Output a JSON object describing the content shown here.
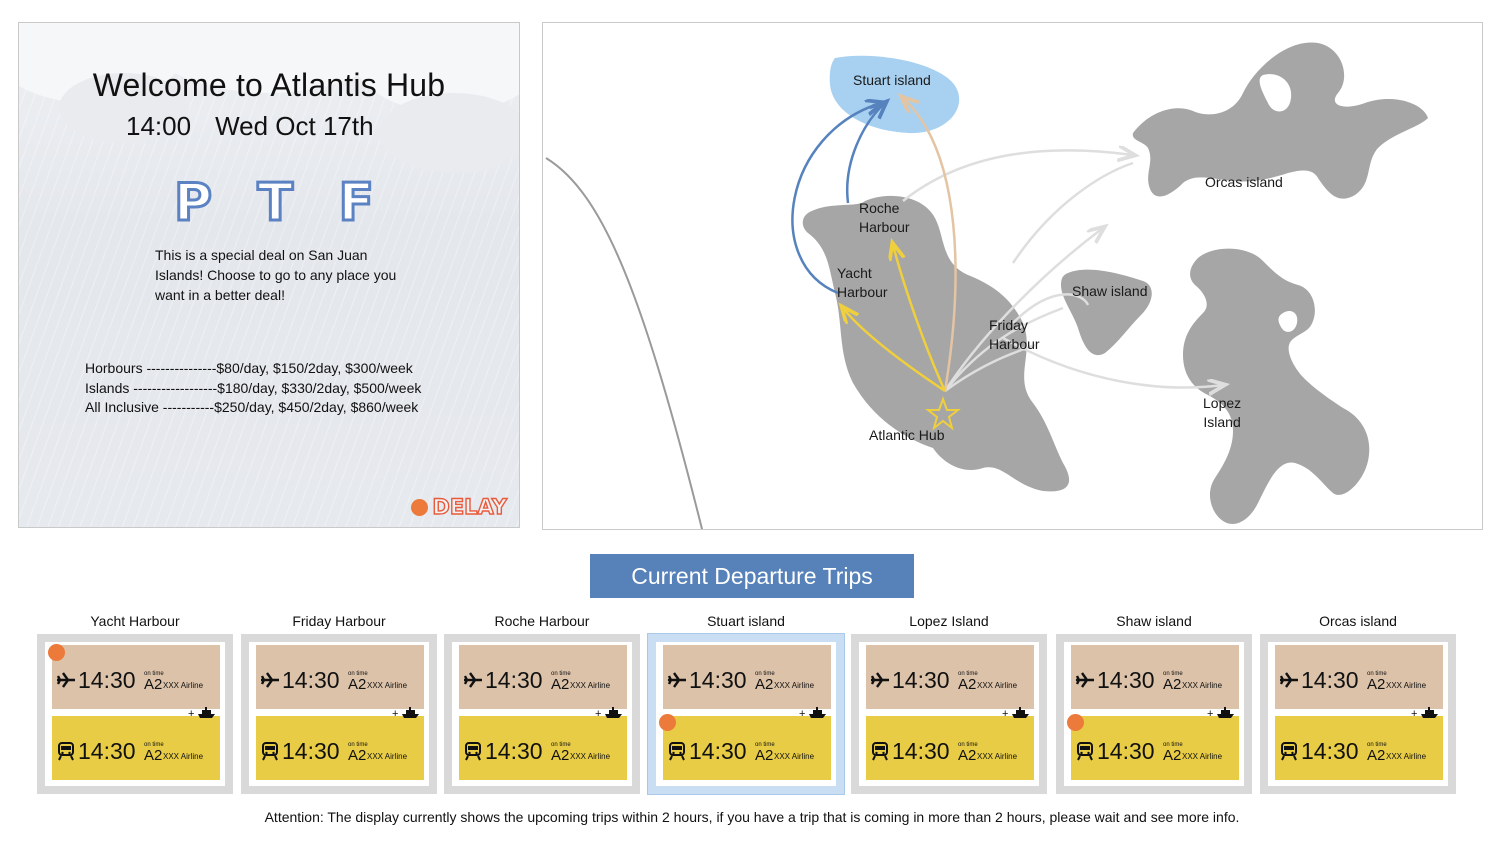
{
  "welcome": {
    "title": "Welcome to Atlantis Hub",
    "time": "14:00",
    "date": "Wed Oct 17th",
    "ptf": [
      "P",
      "T",
      "F"
    ],
    "deal_text": "This is a special deal on San Juan Islands! Choose to go to any place you want in a better deal!",
    "prices": [
      "Horbours ---------------$80/day, $150/2day, $300/week",
      "Islands ------------------$180/day, $330/2day, $500/week",
      "All Inclusive -----------$250/day, $450/2day, $860/week"
    ],
    "delay_label": "DELAY",
    "delay_color": "#ec7a3a"
  },
  "map": {
    "labels": {
      "stuart": "Stuart island",
      "orcas": "Orcas island",
      "roche": "Roche\nHarbour",
      "yacht": "Yacht\nHarbour",
      "shaw": "Shaw island",
      "friday": "Friday\nHarbour",
      "lopez": "Lopez\nIsland",
      "hub": "Atlantic Hub"
    },
    "colors": {
      "land": "#a6a6a6",
      "highlight": "#a8d1f1",
      "ferry_route": "#f0cf3d",
      "flight_route": "#5683bd",
      "tan_route": "#e3c4a3",
      "other_route": "#dedede"
    }
  },
  "departures": {
    "title": "Current Departure Trips",
    "stations": [
      {
        "name": "Yacht Harbour",
        "flight": {
          "time": "14:30",
          "status": "on time",
          "code": "A2",
          "airline": "XXX Airline"
        },
        "ferry": {
          "time": "14:30",
          "status": "on time",
          "code": "A2",
          "airline": "XXX Airline"
        },
        "delay_flight": true,
        "delay_ferry": false,
        "selected": false
      },
      {
        "name": "Friday Harbour",
        "flight": {
          "time": "14:30",
          "status": "on time",
          "code": "A2",
          "airline": "XXX Airline"
        },
        "ferry": {
          "time": "14:30",
          "status": "on time",
          "code": "A2",
          "airline": "XXX Airline"
        },
        "delay_flight": false,
        "delay_ferry": false,
        "selected": false
      },
      {
        "name": "Roche Harbour",
        "flight": {
          "time": "14:30",
          "status": "on time",
          "code": "A2",
          "airline": "XXX Airline"
        },
        "ferry": {
          "time": "14:30",
          "status": "on time",
          "code": "A2",
          "airline": "XXX Airline"
        },
        "delay_flight": false,
        "delay_ferry": false,
        "selected": false
      },
      {
        "name": "Stuart island",
        "flight": {
          "time": "14:30",
          "status": "on time",
          "code": "A2",
          "airline": "XXX Airline"
        },
        "ferry": {
          "time": "14:30",
          "status": "on time",
          "code": "A2",
          "airline": "XXX Airline"
        },
        "delay_flight": false,
        "delay_ferry": true,
        "selected": true
      },
      {
        "name": "Lopez Island",
        "flight": {
          "time": "14:30",
          "status": "on time",
          "code": "A2",
          "airline": "XXX Airline"
        },
        "ferry": {
          "time": "14:30",
          "status": "on time",
          "code": "A2",
          "airline": "XXX Airline"
        },
        "delay_flight": false,
        "delay_ferry": false,
        "selected": false
      },
      {
        "name": "Shaw island",
        "flight": {
          "time": "14:30",
          "status": "on time",
          "code": "A2",
          "airline": "XXX Airline"
        },
        "ferry": {
          "time": "14:30",
          "status": "on time",
          "code": "A2",
          "airline": "XXX Airline"
        },
        "delay_flight": false,
        "delay_ferry": true,
        "selected": false
      },
      {
        "name": "Orcas island",
        "flight": {
          "time": "14:30",
          "status": "on time",
          "code": "A2",
          "airline": "XXX Airline"
        },
        "ferry": {
          "time": "14:30",
          "status": "on time",
          "code": "A2",
          "airline": "XXX Airline"
        },
        "delay_flight": false,
        "delay_ferry": false,
        "selected": false
      }
    ],
    "ferry_mark": "+",
    "attention": "Attention: The display currently shows the upcoming trips within 2 hours, if you have a trip that is coming in more than 2 hours, please wait and see more info."
  }
}
